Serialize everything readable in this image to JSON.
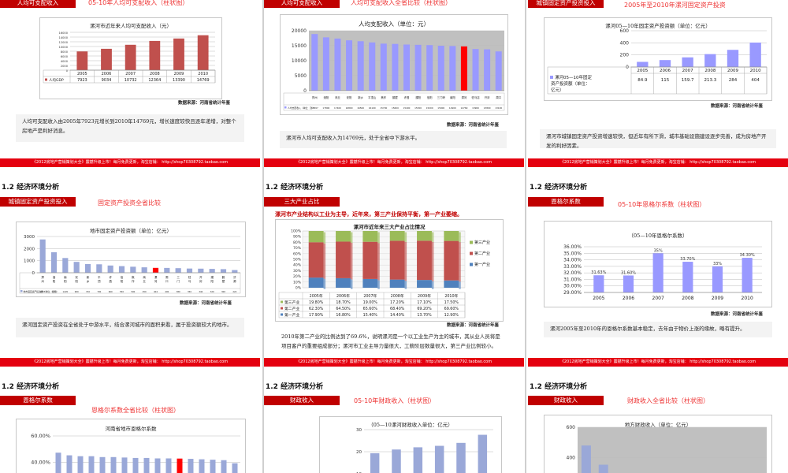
{
  "footer_text": "《2012房地产营销策划大全》震撼升级上市！每月免费更新，淘宝店铺： http://shop70308792.taobao.com",
  "section": "1.2 经济环境分析",
  "source": "数据来源：河南省统计年鉴",
  "colors": {
    "bar_red": "#c0504d",
    "bar_purple": "#9999ff",
    "bar_gray": "#9aa8d8",
    "highlight": "#ff0000",
    "tag": "#c00000",
    "footer": "#e4000f"
  },
  "slides": {
    "s1": {
      "tag": "人均可支配收入",
      "subtitle": "05-10年人均可支配收入（柱状图）",
      "chart_title": "漯河市近年来人均可支配收入（元）",
      "legend": "人均GDP",
      "desc": "人均可支配收入由2005年7923元增长到2010年14769元，增长速度较快且逐年递增，对整个房地产是利好消息。"
    },
    "s2": {
      "tag": "人均可支配收入",
      "subtitle": "人均可支配收入全省比较（柱状图）",
      "chart_title": "人均支配收入（单位：元）",
      "legend": "人均支配收入（单位：元）",
      "desc": "漯河市人均可支配收入为14769元，处于全省中下游水平。"
    },
    "s3": {
      "tag": "城镇固定资产投资投入",
      "subtitle": "2005年至2010年漯河固定资产投资",
      "chart_title": "漯河05—10年固定资产投资额（单位：亿元）",
      "legend": "漯河05—10年固定资产投资额（单位：亿元）",
      "desc": "漯河市城镇固定资产投资增速较快，但近年有所下滑，城市基础设施建设逐步完善，成为房地产开发的利好因素。"
    },
    "s4": {
      "tag": "城镇固定资产投资投入",
      "subtitle": "固定资产投资全省比较",
      "chart_title": "地市固定资产投资额（单位：亿元）",
      "legend": "地市固定资产投资额（单位：亿元）",
      "desc": "漯河固定资产投资在全省处于中游水平，结合漯河城市的面积来看，属于投资额较大的地市。"
    },
    "s5": {
      "tag": "三大产业占比",
      "headline": "漯河市产业结构以工业为主导，近年来，第三产业保持平衡，第一产业萎缩。",
      "chart_title": "漯河市近年来三大产业占比情况",
      "desc": "2010年第二产业的比例达到了69.6%，说明漯河是一个以工业生产为主的城市，其从业人员将是项目客户的重要组成部分；漯河市工业主导力量很大，工薪阶层数量很大，第三产业比例较小。"
    },
    "s6": {
      "tag": "恩格尔系数",
      "subtitle": "05-10年恩格尔系数（柱状图）",
      "chart_title": "（05—10年恩格尔系数）",
      "desc": "漯河2005年至2010年的恩格尔系数基本稳定，去年由于物价上涨的缘故，略有提升。"
    },
    "s7": {
      "tag": "恩格尔系数",
      "subtitle": "恩格尔系数全省比较（柱状图）",
      "chart_title": "河南省地市恩格尔系数"
    },
    "s8": {
      "tag": "财政收入",
      "subtitle": "05-10年财政收入（柱状图）",
      "chart_title": "（05—10漯河财政收入单位：亿元）"
    },
    "s9": {
      "tag": "财政收入",
      "subtitle": "财政收入全省比较（柱状图）",
      "chart_title": "地方财政收入（单位：亿元）"
    }
  },
  "chart_data": [
    {
      "id": "s1",
      "type": "bar",
      "title": "漯河市近年来人均可支配收入（元）",
      "categories": [
        "2005",
        "2006",
        "2007",
        "2008",
        "2009",
        "2010"
      ],
      "series": [
        {
          "name": "人均GDP",
          "values": [
            7923,
            9034,
            10732,
            12364,
            13390,
            14769
          ]
        }
      ],
      "yticks": [
        "0",
        "2000",
        "4000",
        "6000",
        "8000",
        "10000",
        "12000",
        "14000",
        "16000"
      ],
      "ylim": [
        0,
        16000
      ]
    },
    {
      "id": "s2",
      "type": "bar",
      "title": "人均支配收入（单位：元）",
      "categories": [
        "郑州",
        "洛阳",
        "商丘",
        "安阳",
        "新乡",
        "平顶山",
        "焦作",
        "鹤壁",
        "许昌",
        "濮阳",
        "信阳",
        "三门峡",
        "南阳",
        "漯河",
        "驻马店",
        "开封",
        "周口"
      ],
      "series": [
        {
          "name": "人均支配收入（单位：元）",
          "values": [
            18897,
            17800,
            17400,
            16800,
            16500,
            16100,
            15700,
            15600,
            15400,
            15300,
            15200,
            15000,
            14900,
            14769,
            13900,
            13800,
            13100
          ]
        }
      ],
      "highlight_index": 13,
      "yticks": [
        "0",
        "5000",
        "10000",
        "15000",
        "20000"
      ],
      "ylim": [
        0,
        20000
      ]
    },
    {
      "id": "s3",
      "type": "bar",
      "title": "漯河05—10年固定资产投资额（单位：亿元）",
      "categories": [
        "2005",
        "2006",
        "2007",
        "2008",
        "2009",
        "2010"
      ],
      "series": [
        {
          "name": "漯河05—10年固定资产投资额（单位：亿元）",
          "values": [
            84.9,
            115,
            159.7,
            213.3,
            284,
            404
          ]
        }
      ],
      "yticks": [
        "0",
        "200",
        "400",
        "600"
      ],
      "ylim": [
        0,
        600
      ]
    },
    {
      "id": "s4",
      "type": "bar",
      "title": "地市固定资产投资额（单位：亿元）",
      "categories": [
        "郑州",
        "洛阳",
        "南阳",
        "安阳",
        "新乡",
        "平顶山",
        "许昌",
        "信阳",
        "焦作",
        "商丘",
        "漯河",
        "周口",
        "三门峡",
        "驻马店",
        "开封",
        "濮阳",
        "鹤壁",
        "济源"
      ],
      "series": [
        {
          "name": "地市固定资产投资额（单位：亿元）",
          "values": [
            2757,
            1700,
            1220,
            900,
            720,
            700,
            600,
            550,
            500,
            450,
            404,
            400,
            380,
            350,
            340,
            320,
            300,
            224
          ]
        }
      ],
      "highlight_index": 10,
      "yticks": [
        "0",
        "1000",
        "2000",
        "3000"
      ],
      "ylim": [
        0,
        3000
      ]
    },
    {
      "id": "s5",
      "type": "bar",
      "stacked": true,
      "title": "漯河市近年来三大产业占比情况",
      "categories": [
        "2005年",
        "2006年",
        "2007年",
        "2008年",
        "2009年",
        "2010年"
      ],
      "series": [
        {
          "name": "第一产业",
          "values": [
            17.9,
            16.8,
            15.4,
            14.4,
            13.7,
            12.9
          ]
        },
        {
          "name": "第二产业",
          "values": [
            62.3,
            64.5,
            65.6,
            68.4,
            69.2,
            69.6
          ]
        },
        {
          "name": "第三产业",
          "values": [
            19.8,
            18.7,
            19.0,
            17.2,
            17.1,
            17.5
          ]
        }
      ],
      "value_labels": {
        "第一产业": [
          "17.90%",
          "16.80%",
          "15.40%",
          "14.40%",
          "13.70%",
          "12.90%"
        ],
        "第二产业": [
          "62.30%",
          "64.50%",
          "65.60%",
          "68.40%",
          "69.20%",
          "69.60%"
        ],
        "第三产业": [
          "19.80%",
          "18.70%",
          "19.00%",
          "17.20%",
          "17.10%",
          "17.50%"
        ]
      },
      "yticks": [
        "0%",
        "10%",
        "20%",
        "30%",
        "40%",
        "50%",
        "60%",
        "70%",
        "80%",
        "90%",
        "100%"
      ],
      "ylim": [
        0,
        100
      ]
    },
    {
      "id": "s6",
      "type": "bar",
      "title": "（05—10年恩格尔系数）",
      "categories": [
        "2005",
        "2006",
        "2007",
        "2008",
        "2009",
        "2010"
      ],
      "series": [
        {
          "name": "恩格尔系数",
          "values": [
            31.63,
            31.6,
            35,
            33.7,
            33,
            34.3
          ]
        }
      ],
      "labels": [
        "31.63%",
        "31.60%",
        "35%",
        "33.70%",
        "33%",
        "34.30%"
      ],
      "yticks": [
        "29.00%",
        "30.00%",
        "31.00%",
        "32.00%",
        "33.00%",
        "34.00%",
        "35.00%",
        "36.00%"
      ],
      "ylim": [
        29,
        36
      ]
    },
    {
      "id": "s7",
      "type": "bar",
      "title": "河南省地市恩格尔系数",
      "series": [
        {
          "name": "恩格尔系数",
          "values": [
            41,
            38,
            37,
            37,
            36,
            36,
            35.5,
            35,
            35,
            34.5,
            34.5,
            34.3,
            34,
            33.5,
            33,
            32.5,
            29
          ]
        }
      ],
      "highlight_index": 11,
      "yticks": [
        "20.00%",
        "40.00%",
        "60.00%"
      ],
      "ylim": [
        0,
        60
      ]
    },
    {
      "id": "s8",
      "type": "bar",
      "title": "（05—10漯河财政收入单位：亿元）",
      "categories": [
        "2005",
        "2006",
        "2007",
        "2008",
        "2009",
        "2010"
      ],
      "series": [
        {
          "name": "财政收入",
          "values": [
            14,
            16.5,
            18,
            19,
            21,
            26.5
          ]
        }
      ],
      "yticks": [
        "10",
        "20",
        "30"
      ],
      "ylim": [
        0,
        30
      ]
    },
    {
      "id": "s9",
      "type": "bar",
      "title": "地方财政收入（单位：亿元）",
      "series": [
        {
          "name": "地方财政收入",
          "values": [
            420,
            230,
            120,
            100,
            90,
            80,
            70,
            60,
            55,
            50,
            45
          ]
        }
      ],
      "yticks": [
        "200",
        "400",
        "600"
      ],
      "ylim": [
        0,
        600
      ]
    }
  ]
}
